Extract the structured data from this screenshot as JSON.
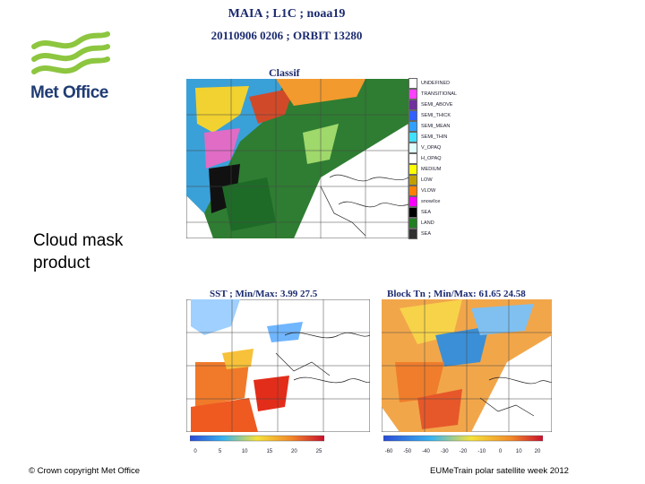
{
  "logo": {
    "text": "Met Office",
    "colors": {
      "green": "#8dc63f",
      "navy": "#1f3b73"
    }
  },
  "header": {
    "line1": "MAIA ; L1C ; noaa19",
    "line2": "20110906 0206 ; ORBIT 13280"
  },
  "top_panel": {
    "title": "Classif",
    "legend": [
      {
        "label": "UNDEFINED",
        "color": "#ffffff"
      },
      {
        "label": "TRANSITIONAL",
        "color": "#ff40ff"
      },
      {
        "label": "SEMI_ABOVE",
        "color": "#7030a0"
      },
      {
        "label": "SEMI_THICK",
        "color": "#3060ff"
      },
      {
        "label": "SEMI_MEAN",
        "color": "#30a0ff"
      },
      {
        "label": "SEMI_THIN",
        "color": "#40e0ff"
      },
      {
        "label": "V_OPAQ",
        "color": "#e0ffff"
      },
      {
        "label": "H_OPAQ",
        "color": "#ffffff"
      },
      {
        "label": "MEDIUM",
        "color": "#ffff00"
      },
      {
        "label": "LOW",
        "color": "#c0a000"
      },
      {
        "label": "VLOW",
        "color": "#ff8000"
      },
      {
        "label": "snow/ice",
        "color": "#ff00ff"
      },
      {
        "label": "SEA",
        "color": "#000000"
      },
      {
        "label": "LAND",
        "color": "#208020"
      },
      {
        "label": "SEA",
        "color": "#303030"
      }
    ]
  },
  "side_label": {
    "line1": "Cloud mask",
    "line2": "product"
  },
  "sst_panel": {
    "title": "SST ; Min/Max:   3.99    27.5",
    "ticks": [
      "0",
      "5",
      "10",
      "15",
      "20",
      "25"
    ]
  },
  "bt_panel": {
    "title": "Block Tn ; Min/Max:   61.65    24.58",
    "ticks": [
      "-60",
      "-50",
      "-40",
      "-30",
      "-20",
      "-10",
      "0",
      "10",
      "20"
    ]
  },
  "footer": {
    "left": "© Crown copyright   Met Office",
    "right": "EUMeTrain polar satellite week 2012"
  }
}
